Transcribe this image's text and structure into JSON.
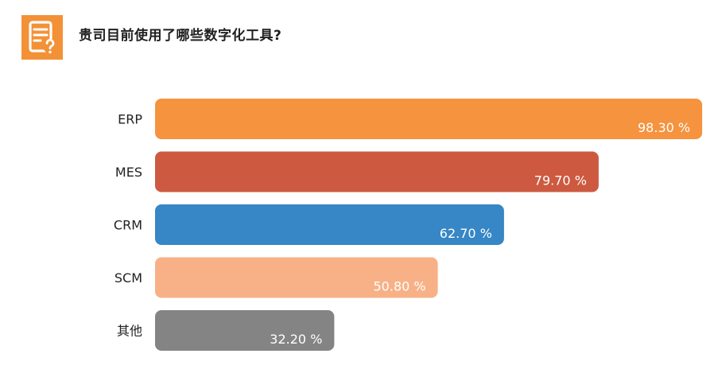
{
  "header": {
    "title": "贵司目前使用了哪些数字化工具?",
    "icon": "question-document-icon",
    "icon_color": "#f39137"
  },
  "chart_data": {
    "type": "bar",
    "orientation": "horizontal",
    "title": "贵司目前使用了哪些数字化工具?",
    "categories": [
      "ERP",
      "MES",
      "CRM",
      "SCM",
      "其他"
    ],
    "values": [
      98.3,
      79.7,
      62.7,
      50.8,
      32.2
    ],
    "value_labels": [
      "98.30 %",
      "79.70 %",
      "62.70 %",
      "50.80 %",
      "32.20 %"
    ],
    "colors": [
      "#f5933f",
      "#cd5a40",
      "#3786c5",
      "#f8b186",
      "#848484"
    ],
    "xlim": [
      0,
      100
    ],
    "grid": false,
    "legend": "none"
  }
}
